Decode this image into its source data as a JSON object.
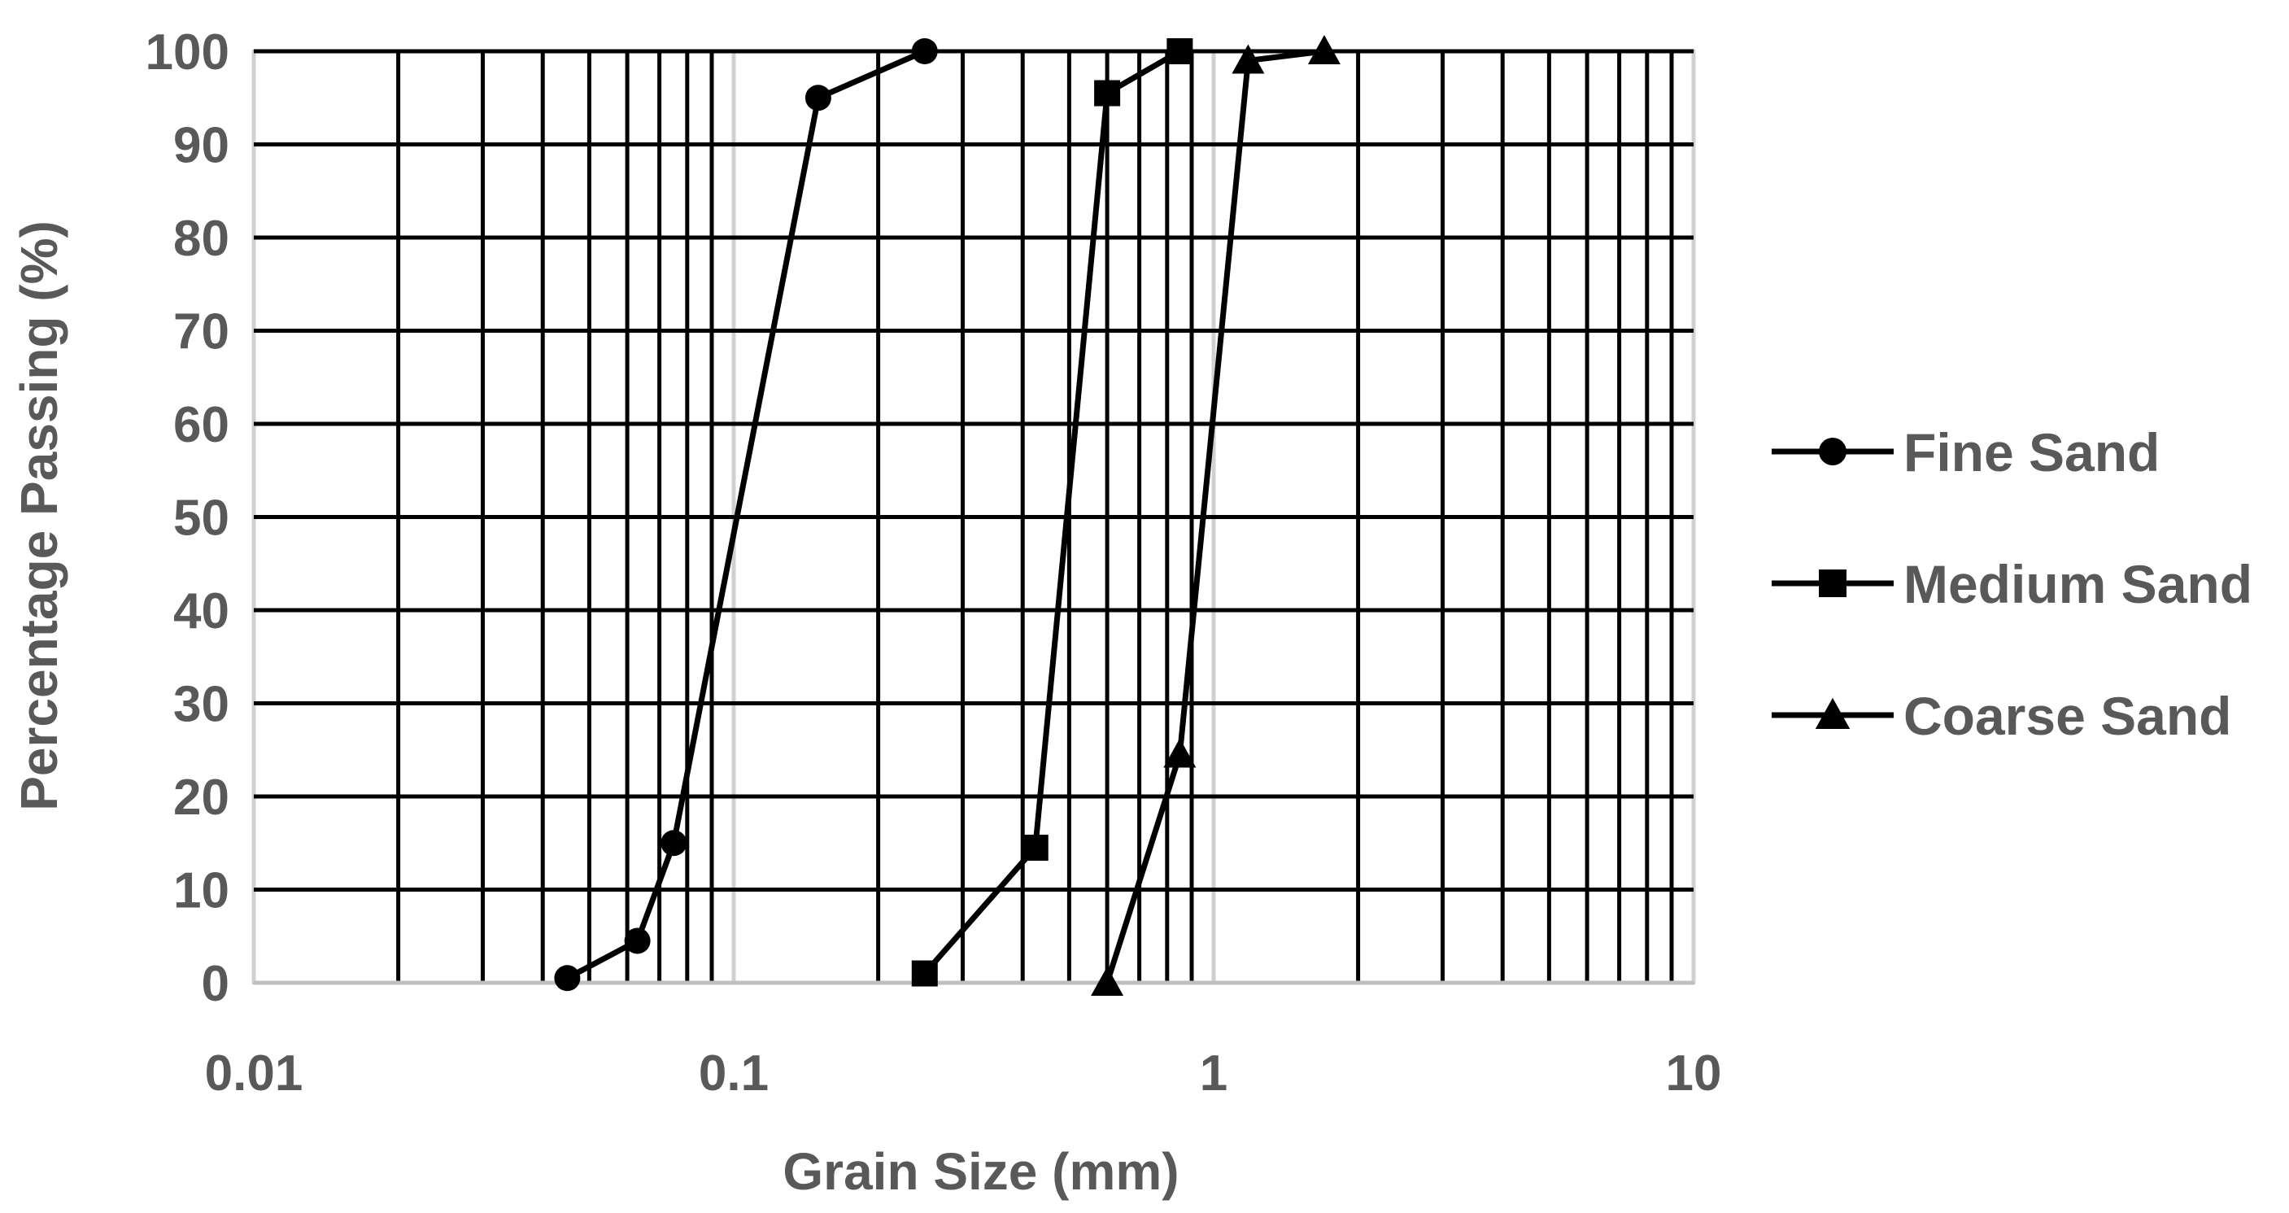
{
  "chart_data": {
    "type": "scatter",
    "title": "",
    "xlabel": "Grain Size (mm)",
    "ylabel": "Percentage Passing (%)",
    "xscale": "log",
    "xlim": [
      0.01,
      10
    ],
    "ylim": [
      0,
      100
    ],
    "x_ticks": [
      "0.01",
      "0.1",
      "1",
      "10"
    ],
    "y_ticks": [
      "0",
      "10",
      "20",
      "30",
      "40",
      "50",
      "60",
      "70",
      "80",
      "90",
      "100"
    ],
    "grid": true,
    "legend_position": "right",
    "lines_connect_points": true,
    "series": [
      {
        "name": "Fine Sand",
        "marker": "circle",
        "color": "#000000",
        "x": [
          0.045,
          0.063,
          0.075,
          0.15,
          0.25
        ],
        "y": [
          0.5,
          4.5,
          15,
          95,
          100
        ]
      },
      {
        "name": "Medium Sand",
        "marker": "square",
        "color": "#000000",
        "x": [
          0.25,
          0.425,
          0.6,
          0.85
        ],
        "y": [
          1,
          14.5,
          95.5,
          100
        ]
      },
      {
        "name": "Coarse Sand",
        "marker": "triangle",
        "color": "#000000",
        "x": [
          0.6,
          0.85,
          1.18,
          1.7
        ],
        "y": [
          0,
          24.5,
          99,
          100
        ]
      }
    ]
  }
}
